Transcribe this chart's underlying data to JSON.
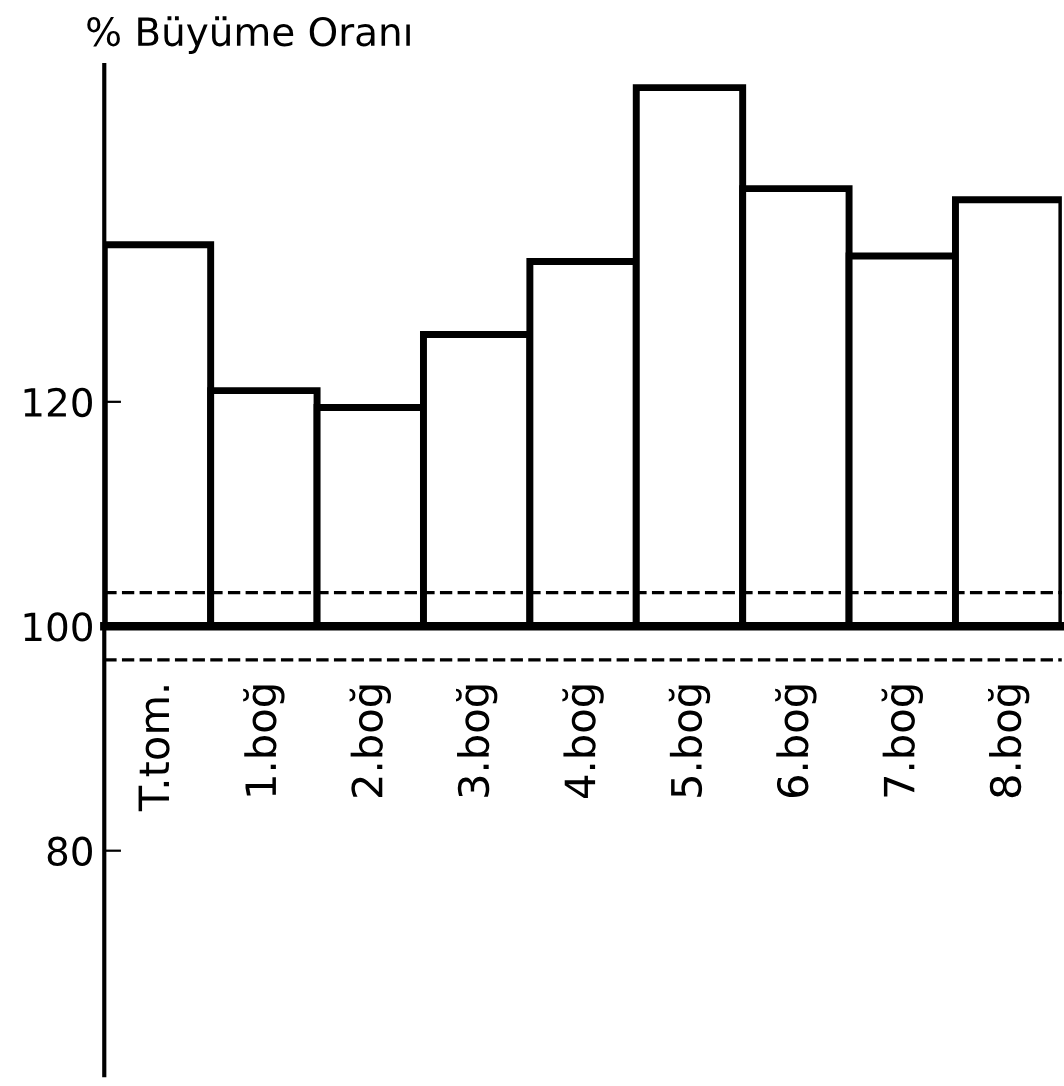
{
  "chart_data": {
    "type": "bar",
    "title": "% Büyüme Oranı",
    "categories": [
      "T.tom.",
      "1.boğ",
      "2.boğ",
      "3.boğ",
      "4.boğ",
      "5.boğ",
      "6.boğ",
      "7.boğ",
      "8.boğ"
    ],
    "base": [
      100,
      100,
      100,
      100,
      100,
      100,
      100,
      100,
      100
    ],
    "values": [
      34,
      21,
      19.5,
      26,
      32.5,
      48,
      39,
      33,
      38
    ],
    "color": "#ffffff",
    "ylim": [
      60,
      150
    ],
    "yticks": [
      80,
      100,
      120
    ],
    "ref_lines": [
      {
        "axis": "y",
        "value": 103,
        "line_style": "dashed",
        "color": "#000000"
      },
      {
        "axis": "y",
        "value": 97,
        "line_style": "dashed",
        "color": "#000000"
      }
    ],
    "grid": false
  }
}
